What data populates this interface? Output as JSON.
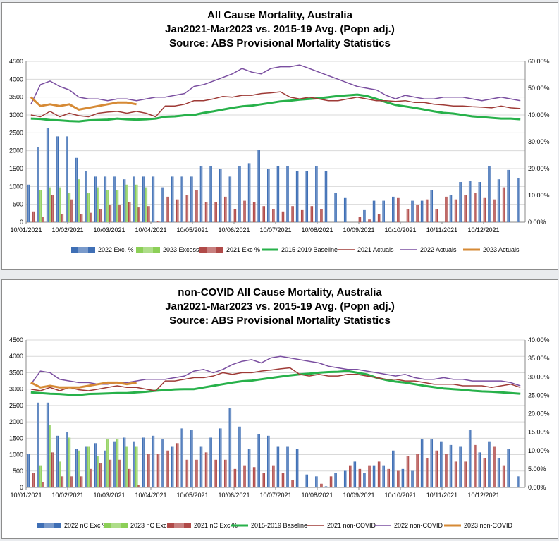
{
  "chart_data": [
    {
      "type": "bar",
      "title": [
        "All Cause Mortality, Australia",
        "Jan2021-Mar2023 vs. 2015-19 Avg. (Popn adj.)",
        "Source: ABS Provisional Mortality Statistics"
      ],
      "x_tick_labels": [
        "10/01/2021",
        "10/02/2021",
        "10/03/2021",
        "10/04/2021",
        "10/05/2021",
        "10/06/2021",
        "10/07/2021",
        "10/08/2021",
        "10/09/2021",
        "10/10/2021",
        "10/11/2021",
        "10/12/2021"
      ],
      "y_left_ticks": [
        "0",
        "500",
        "1000",
        "1500",
        "2000",
        "2500",
        "3000",
        "3500",
        "4000",
        "4500"
      ],
      "y_left_lim": [
        0,
        4500
      ],
      "y_right_ticks": [
        "0.00%",
        "10.00%",
        "20.00%",
        "30.00%",
        "40.00%",
        "50.00%",
        "60.00%"
      ],
      "y_right_lim": [
        0,
        60
      ],
      "n_weeks": 52,
      "bar_series": [
        {
          "name": "2022 Exc. %",
          "axis": "right",
          "color": "#3f6fb5",
          "values": [
            14,
            28,
            35,
            32,
            32,
            24,
            19,
            17,
            17,
            17,
            16,
            17,
            17,
            17,
            13,
            17,
            17,
            17,
            21,
            21,
            20,
            17,
            21,
            22,
            27,
            20,
            21,
            21,
            19,
            19,
            21,
            19,
            11,
            9,
            0,
            4.5,
            8,
            8,
            9.5,
            0,
            8,
            8,
            12,
            0,
            10,
            15,
            15.5,
            15,
            21,
            16,
            19.5,
            16.5
          ]
        },
        {
          "name": "2023 Excess %",
          "axis": "right",
          "color": "#8ccf57",
          "values": [
            0,
            12,
            13,
            13,
            11,
            16,
            11,
            13,
            12,
            12,
            14,
            14,
            13,
            0,
            0,
            0,
            0,
            0,
            0,
            0,
            0,
            0,
            0,
            0,
            0,
            0,
            0,
            0,
            0,
            0,
            0,
            0,
            0,
            0,
            0,
            0,
            0,
            0,
            0,
            0,
            0,
            0,
            0,
            0,
            0,
            0,
            0,
            0,
            0,
            0,
            0,
            0
          ]
        },
        {
          "name": "2021 Exc %",
          "axis": "right",
          "color": "#b04a48",
          "values": [
            4,
            2,
            10,
            3,
            8.5,
            3,
            3.5,
            5,
            6.5,
            6.5,
            7.5,
            5.5,
            6,
            0.5,
            9.5,
            8.5,
            10,
            12,
            7.5,
            7.5,
            9.5,
            5,
            8,
            7.5,
            6,
            5,
            4,
            6,
            4.5,
            6,
            5,
            0,
            0,
            0,
            2,
            1,
            3,
            0,
            9,
            5,
            6.5,
            8.5,
            5,
            9.5,
            8.5,
            10,
            11,
            9,
            8.5,
            13,
            0,
            0
          ]
        }
      ],
      "line_series": [
        {
          "name": "2015-2019 Baseline",
          "axis": "left",
          "color": "#27b14a",
          "values": [
            2900,
            2890,
            2860,
            2850,
            2830,
            2820,
            2850,
            2860,
            2870,
            2900,
            2880,
            2870,
            2880,
            2900,
            2950,
            2960,
            2990,
            3000,
            3060,
            3100,
            3150,
            3200,
            3240,
            3260,
            3300,
            3340,
            3380,
            3400,
            3430,
            3450,
            3470,
            3500,
            3530,
            3550,
            3570,
            3530,
            3450,
            3360,
            3280,
            3240,
            3200,
            3150,
            3100,
            3060,
            3040,
            3000,
            2960,
            2940,
            2920,
            2900,
            2900,
            2880
          ]
        },
        {
          "name": "2021 Actuals",
          "axis": "left",
          "color": "#9e3a36",
          "values": [
            3000,
            2950,
            3100,
            2950,
            3050,
            2980,
            2950,
            3050,
            3080,
            3100,
            3050,
            3100,
            3050,
            2950,
            3250,
            3250,
            3300,
            3400,
            3400,
            3450,
            3520,
            3500,
            3550,
            3550,
            3600,
            3620,
            3650,
            3500,
            3450,
            3500,
            3450,
            3400,
            3400,
            3450,
            3500,
            3450,
            3400,
            3400,
            3380,
            3400,
            3350,
            3350,
            3300,
            3280,
            3250,
            3250,
            3230,
            3220,
            3200,
            3250,
            3200,
            3180
          ]
        },
        {
          "name": "2022 Actuals",
          "axis": "left",
          "color": "#7a4ea0",
          "values": [
            3300,
            3850,
            3950,
            3800,
            3700,
            3500,
            3450,
            3450,
            3400,
            3450,
            3450,
            3400,
            3450,
            3500,
            3500,
            3550,
            3600,
            3800,
            3850,
            3950,
            4050,
            4150,
            4300,
            4200,
            4150,
            4300,
            4350,
            4350,
            4400,
            4300,
            4200,
            4100,
            4000,
            3900,
            3800,
            3750,
            3700,
            3550,
            3450,
            3550,
            3500,
            3450,
            3450,
            3500,
            3500,
            3500,
            3450,
            3400,
            3450,
            3500,
            3450,
            3400
          ]
        },
        {
          "name": "2023 Actuals",
          "axis": "left",
          "color": "#d68a35",
          "values": [
            3500,
            3250,
            3300,
            3250,
            3300,
            3150,
            3200,
            3250,
            3300,
            3350,
            3350,
            3300,
            null,
            null,
            null,
            null,
            null,
            null,
            null,
            null,
            null,
            null,
            null,
            null,
            null,
            null,
            null,
            null,
            null,
            null,
            null,
            null,
            null,
            null,
            null,
            null,
            null,
            null,
            null,
            null,
            null,
            null,
            null,
            null,
            null,
            null,
            null,
            null,
            null,
            null,
            null,
            null
          ]
        }
      ],
      "legend": [
        "2022 Exc. %",
        "2023 Excess %",
        "2021 Exc %",
        "2015-2019 Baseline",
        "2021 Actuals",
        "2022 Actuals",
        "2023 Actuals"
      ],
      "legend_position": "bottom"
    },
    {
      "type": "bar",
      "title": [
        "non-COVID All Cause Mortality, Australia",
        "Jan2021-Mar2023 vs. 2015-19 Avg. (Popn adj.)",
        "Source: ABS Provisional Mortality Statistics"
      ],
      "x_tick_labels": [
        "10/01/2021",
        "10/02/2021",
        "10/03/2021",
        "10/04/2021",
        "10/05/2021",
        "10/06/2021",
        "10/07/2021",
        "10/08/2021",
        "10/09/2021",
        "10/10/2021",
        "10/11/2021",
        "10/12/2021"
      ],
      "y_left_ticks": [
        "0",
        "500",
        "1000",
        "1500",
        "2000",
        "2500",
        "3000",
        "3500",
        "4000",
        "4500"
      ],
      "y_left_lim": [
        0,
        4500
      ],
      "y_right_ticks": [
        "0.00%",
        "5.00%",
        "10.00%",
        "15.00%",
        "20.00%",
        "25.00%",
        "30.00%",
        "35.00%",
        "40.00%"
      ],
      "y_right_lim": [
        0,
        40
      ],
      "n_weeks": 52,
      "bar_series": [
        {
          "name": "2022 nC Exc %",
          "axis": "right",
          "color": "#3f6fb5",
          "values": [
            9,
            23,
            23,
            14,
            15,
            10.5,
            11,
            12,
            10,
            12.5,
            13.5,
            12.5,
            13.5,
            14,
            13,
            11,
            16,
            15.5,
            11,
            13.5,
            16,
            21.5,
            16.5,
            10.5,
            14.5,
            14,
            11,
            11,
            10.5,
            3.5,
            3,
            0.3,
            4,
            4.5,
            7,
            4,
            6,
            6,
            10,
            5,
            4.5,
            13,
            13,
            12.5,
            11.5,
            11,
            15.5,
            9.5,
            12.5,
            8,
            10.5,
            3
          ]
        },
        {
          "name": "2023 nC Exc %",
          "axis": "right",
          "color": "#8ccf57",
          "values": [
            0,
            6,
            17,
            7,
            13.5,
            10,
            11,
            8.5,
            13,
            13,
            11,
            11,
            0,
            0,
            0,
            0,
            0,
            0,
            0,
            0,
            0,
            0,
            0,
            0,
            0,
            0,
            0,
            0,
            0,
            0,
            0,
            0,
            0,
            0,
            0,
            0,
            0,
            0,
            0,
            0,
            0,
            0,
            0,
            0,
            0,
            0,
            0,
            0,
            0,
            0,
            0,
            0
          ]
        },
        {
          "name": "2021 nC Exc %",
          "axis": "right",
          "color": "#b04a48",
          "values": [
            4,
            1.5,
            9.5,
            3,
            3,
            3,
            5,
            6.5,
            7.5,
            7.5,
            5,
            0.7,
            9,
            9,
            10,
            12,
            7.5,
            7.5,
            9.5,
            7.5,
            7.5,
            5,
            6,
            5.5,
            4,
            6,
            4,
            2,
            0,
            0,
            1,
            3,
            0,
            6,
            5,
            6,
            7,
            5,
            4.5,
            8.5,
            9,
            8,
            10,
            9,
            7,
            7,
            11.5,
            8,
            11,
            6,
            0,
            0
          ]
        }
      ],
      "line_series": [
        {
          "name": "2015-2019 Baseline",
          "axis": "left",
          "color": "#27b14a",
          "values": [
            2900,
            2880,
            2860,
            2850,
            2830,
            2820,
            2850,
            2860,
            2870,
            2880,
            2880,
            2900,
            2920,
            2950,
            2970,
            2990,
            3000,
            3000,
            3050,
            3100,
            3150,
            3200,
            3240,
            3260,
            3300,
            3340,
            3380,
            3420,
            3450,
            3470,
            3500,
            3520,
            3530,
            3550,
            3500,
            3450,
            3350,
            3280,
            3230,
            3200,
            3150,
            3100,
            3060,
            3020,
            3000,
            2980,
            2950,
            2930,
            2920,
            2900,
            2880,
            2860
          ]
        },
        {
          "name": "2021 non-COVID",
          "axis": "left",
          "color": "#9e3a36",
          "values": [
            3000,
            2950,
            3050,
            2950,
            3050,
            2980,
            2950,
            3000,
            3050,
            3100,
            3050,
            3050,
            3000,
            2950,
            3250,
            3250,
            3300,
            3350,
            3350,
            3400,
            3500,
            3450,
            3500,
            3500,
            3550,
            3580,
            3620,
            3650,
            3450,
            3400,
            3450,
            3400,
            3400,
            3450,
            3450,
            3400,
            3350,
            3300,
            3300,
            3250,
            3250,
            3200,
            3150,
            3150,
            3150,
            3100,
            3100,
            3100,
            3050,
            3100,
            3150,
            3050
          ]
        },
        {
          "name": "2022 non-COVID",
          "axis": "left",
          "color": "#7a4ea0",
          "values": [
            3150,
            3550,
            3500,
            3300,
            3250,
            3200,
            3200,
            3150,
            3150,
            3200,
            3200,
            3250,
            3300,
            3300,
            3300,
            3350,
            3400,
            3550,
            3600,
            3500,
            3600,
            3750,
            3850,
            3900,
            3800,
            3950,
            4000,
            3950,
            3900,
            3850,
            3800,
            3700,
            3650,
            3600,
            3600,
            3550,
            3500,
            3450,
            3400,
            3450,
            3350,
            3300,
            3300,
            3350,
            3300,
            3300,
            3250,
            3250,
            3250,
            3250,
            3200,
            3100
          ]
        },
        {
          "name": "2023 non-COVID",
          "axis": "left",
          "color": "#d68a35",
          "values": [
            3200,
            3050,
            3100,
            3050,
            3050,
            3050,
            3100,
            3150,
            3200,
            3200,
            3150,
            3200,
            null,
            null,
            null,
            null,
            null,
            null,
            null,
            null,
            null,
            null,
            null,
            null,
            null,
            null,
            null,
            null,
            null,
            null,
            null,
            null,
            null,
            null,
            null,
            null,
            null,
            null,
            null,
            null,
            null,
            null,
            null,
            null,
            null,
            null,
            null,
            null,
            null,
            null,
            null,
            null
          ]
        }
      ],
      "legend": [
        "2022 nC Exc %",
        "2023 nC Exc %",
        "2021 nC Exc %",
        "2015-2019 Baseline",
        "2021 non-COVID",
        "2022 non-COVID",
        "2023 non-COVID"
      ],
      "legend_position": "bottom"
    }
  ]
}
